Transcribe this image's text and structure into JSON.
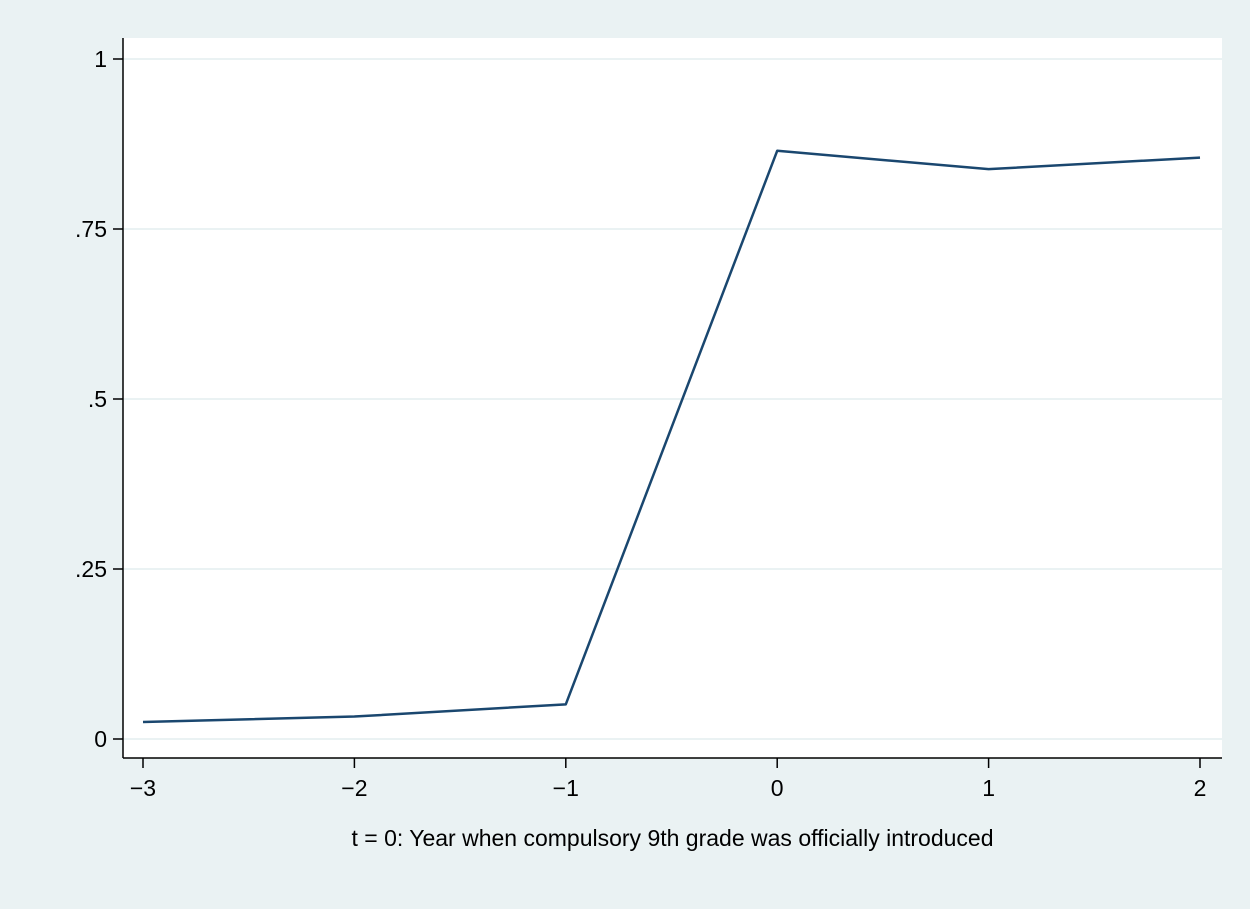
{
  "chart_data": {
    "type": "line",
    "title": "",
    "xlabel": "t = 0: Year when compulsory 9th grade was officially introduced",
    "ylabel": "",
    "x": [
      -3,
      -2,
      -1,
      0,
      1,
      2
    ],
    "series": [
      {
        "values": [
          0.025,
          0.033,
          0.051,
          0.865,
          0.838,
          0.855
        ]
      }
    ],
    "xlim": [
      -3,
      2
    ],
    "ylim": [
      0,
      1
    ],
    "xticks": [
      -3,
      -2,
      -1,
      0,
      1,
      2
    ],
    "xtick_labels": [
      "−3",
      "−2",
      "−1",
      "0",
      "1",
      "2"
    ],
    "yticks": [
      0,
      0.25,
      0.5,
      0.75,
      1
    ],
    "ytick_labels": [
      "0",
      ".25",
      ".5",
      ".75",
      "1"
    ],
    "grid": true,
    "legend": "none",
    "colors": {
      "line": "#1a476f",
      "background": "#eaf2f3",
      "plot_background": "#ffffff",
      "grid": "#eaf2f3"
    }
  }
}
